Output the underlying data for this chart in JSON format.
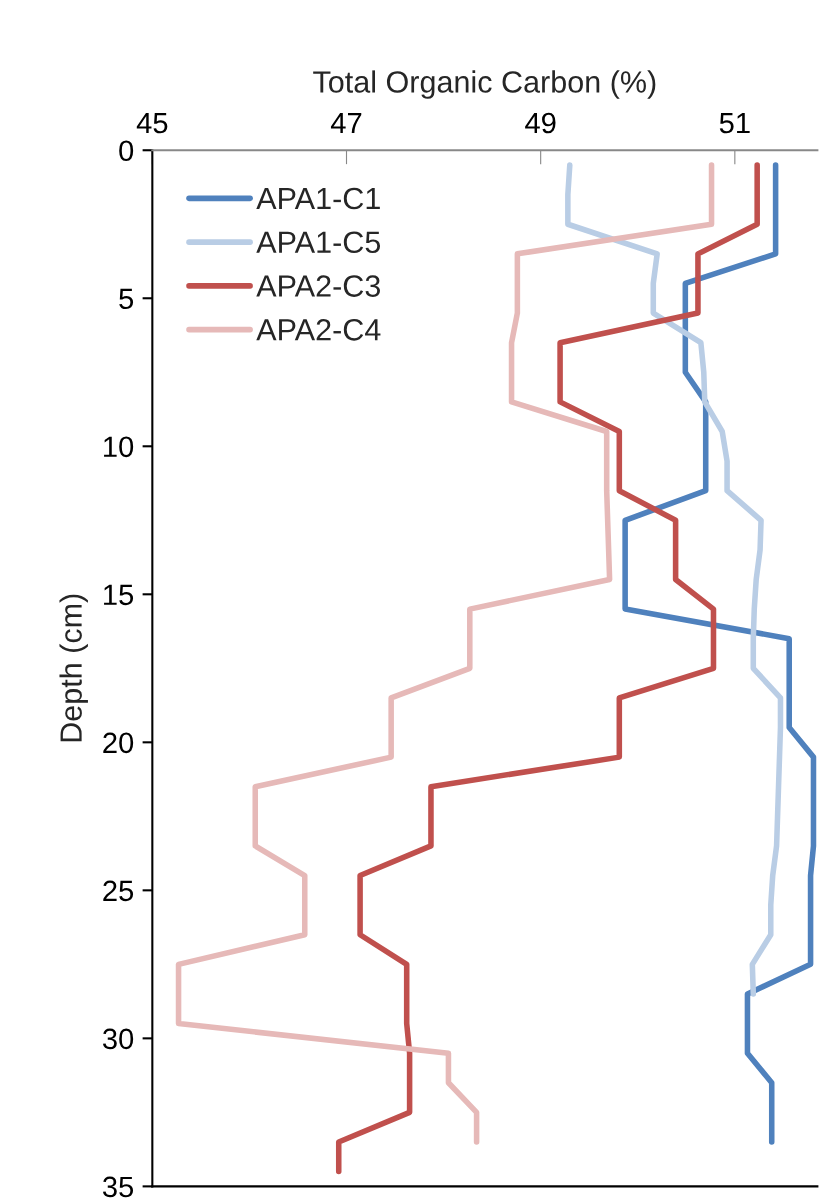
{
  "chart_data": {
    "type": "line",
    "xlabel": "Total Organic Carbon (%)",
    "ylabel": "Depth (cm)",
    "xlim": [
      45,
      51.85
    ],
    "xticks": [
      45,
      47,
      49,
      51
    ],
    "ylim": [
      35,
      0
    ],
    "yticks": [
      0,
      5,
      10,
      15,
      20,
      25,
      30,
      35
    ],
    "legend": "top left",
    "grid": false,
    "marker": "none",
    "line_style": "solid",
    "series": [
      {
        "name": "APA1-C1",
        "color": "#4f81bd",
        "x": [
          51.42,
          51.42,
          51.42,
          51.42,
          50.49,
          50.49,
          50.49,
          50.49,
          50.7,
          50.7,
          50.7,
          50.7,
          49.87,
          49.87,
          49.87,
          49.87,
          51.56,
          51.56,
          51.56,
          51.56,
          51.81,
          51.81,
          51.81,
          51.81,
          51.78,
          51.78,
          51.78,
          51.78,
          51.13,
          51.13,
          51.13,
          51.38,
          51.38,
          51.38
        ],
        "values": [
          0.5,
          1.5,
          2.5,
          3.5,
          4.5,
          5.5,
          6.5,
          7.5,
          8.5,
          9.5,
          10.5,
          11.5,
          12.5,
          13.5,
          14.5,
          15.5,
          16.5,
          17.5,
          18.5,
          19.5,
          20.5,
          21.5,
          22.5,
          23.5,
          24.5,
          25.5,
          26.5,
          27.5,
          28.5,
          29.5,
          30.5,
          31.5,
          32.5,
          33.5
        ]
      },
      {
        "name": "APA1-C5",
        "color": "#b9cde5",
        "x": [
          49.3,
          49.28,
          49.28,
          50.2,
          50.16,
          50.16,
          50.65,
          50.68,
          50.69,
          50.87,
          50.92,
          50.92,
          51.27,
          51.26,
          51.22,
          51.2,
          51.19,
          51.19,
          51.47,
          51.47,
          51.46,
          51.45,
          51.44,
          51.43,
          51.39,
          51.37,
          51.37,
          51.18,
          51.19
        ],
        "values": [
          0.5,
          1.5,
          2.5,
          3.5,
          4.5,
          5.5,
          6.5,
          7.5,
          8.5,
          9.5,
          10.5,
          11.5,
          12.5,
          13.5,
          14.5,
          15.5,
          16.5,
          17.5,
          18.5,
          19.5,
          20.5,
          21.5,
          22.5,
          23.5,
          24.5,
          25.5,
          26.5,
          27.5,
          28.5
        ]
      },
      {
        "name": "APA2-C3",
        "color": "#c0504d",
        "x": [
          51.23,
          51.23,
          51.23,
          50.62,
          50.62,
          50.62,
          49.2,
          49.2,
          49.2,
          49.81,
          49.81,
          49.81,
          50.39,
          50.39,
          50.39,
          50.78,
          50.78,
          50.78,
          49.81,
          49.81,
          49.81,
          47.87,
          47.87,
          47.87,
          47.14,
          47.14,
          47.14,
          47.62,
          47.62,
          47.62,
          47.65,
          47.65,
          47.65,
          46.92,
          46.92
        ],
        "values": [
          0.5,
          1.5,
          2.5,
          3.5,
          4.5,
          5.5,
          6.5,
          7.5,
          8.5,
          9.5,
          10.5,
          11.5,
          12.5,
          13.5,
          14.5,
          15.5,
          16.5,
          17.5,
          18.5,
          19.5,
          20.5,
          21.5,
          22.5,
          23.5,
          24.5,
          25.5,
          26.5,
          27.5,
          28.5,
          29.5,
          30.5,
          31.5,
          32.5,
          33.5,
          34.5
        ]
      },
      {
        "name": "APA2-C4",
        "color": "#e6b9b8",
        "x": [
          50.76,
          50.76,
          50.76,
          48.76,
          48.76,
          48.76,
          48.7,
          48.7,
          48.7,
          49.68,
          49.68,
          49.68,
          49.69,
          49.7,
          49.71,
          48.27,
          48.27,
          48.27,
          47.46,
          47.46,
          47.46,
          46.06,
          46.06,
          46.06,
          46.57,
          46.57,
          46.57,
          45.27,
          45.27,
          45.27,
          48.05,
          48.05,
          48.34,
          48.34
        ],
        "values": [
          0.5,
          1.5,
          2.5,
          3.5,
          4.5,
          5.5,
          6.5,
          7.5,
          8.5,
          9.5,
          10.5,
          11.5,
          12.5,
          13.5,
          14.5,
          15.5,
          16.5,
          17.5,
          18.5,
          19.5,
          20.5,
          21.5,
          22.5,
          23.5,
          24.5,
          25.5,
          26.5,
          27.5,
          28.5,
          29.5,
          30.5,
          31.5,
          32.5,
          33.5
        ]
      }
    ]
  }
}
